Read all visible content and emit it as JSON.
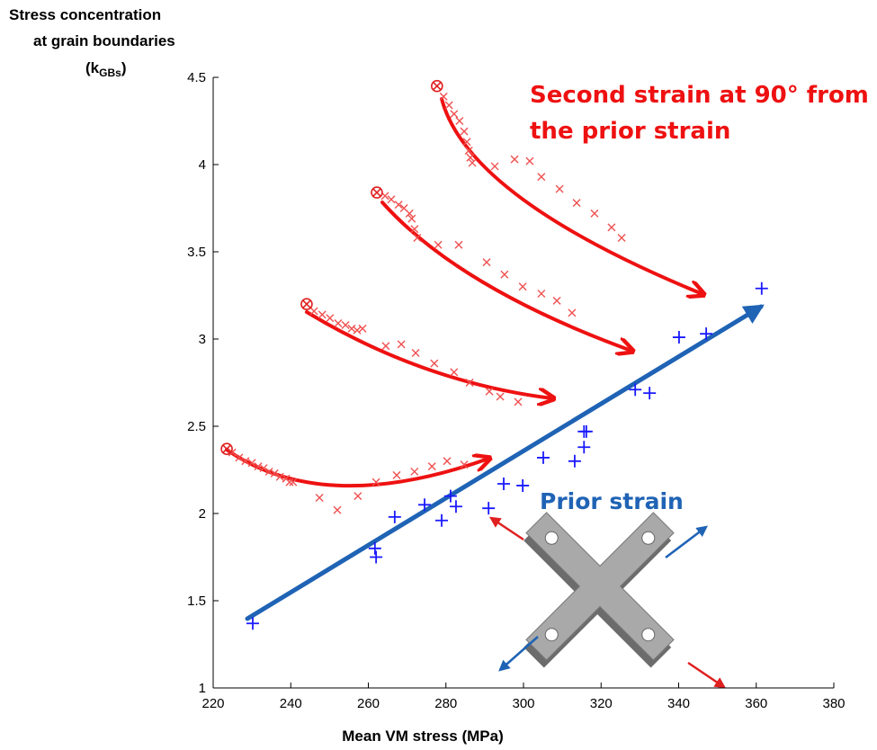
{
  "chart_data": {
    "type": "scatter",
    "xlabel": "Mean VM stress (MPa)",
    "ylabel": [
      "Stress concentration",
      "at grain boundaries"
    ],
    "ylabel_symbol": {
      "text": "(k",
      "sub": "GBs",
      "end": ")"
    },
    "annotations": [
      "Second strain at 90° from",
      "the prior strain",
      "Prior strain"
    ],
    "xlim": [
      220,
      380
    ],
    "xticks": [
      220,
      240,
      260,
      280,
      300,
      320,
      340,
      360,
      380
    ],
    "ylim": [
      1,
      4.5
    ],
    "yticks": [
      1,
      1.5,
      2,
      2.5,
      3,
      3.5,
      4,
      4.5
    ],
    "grid": false,
    "series": [
      {
        "color": "#1a1aff",
        "marker": "plus",
        "x": [
          230.2,
          261.7,
          262.0,
          266.8,
          274.5,
          278.9,
          281.2,
          282.6,
          291.0,
          294.9,
          299.8,
          305.1,
          313.2,
          315.6,
          315.6,
          316.2,
          328.8,
          332.5,
          340.1,
          347.1,
          361.4
        ],
        "values": [
          1.37,
          1.8,
          1.75,
          1.98,
          2.05,
          1.96,
          2.1,
          2.04,
          2.03,
          2.17,
          2.16,
          2.32,
          2.3,
          2.47,
          2.38,
          2.47,
          2.71,
          2.69,
          3.01,
          3.03,
          3.29
        ]
      },
      {
        "color": "#f05050",
        "marker": "x",
        "x": [
          224.9,
          226.7,
          228.3,
          230.0,
          231.6,
          233.0,
          234.4,
          235.8,
          237.2,
          238.8,
          239.7,
          240.6,
          247.4,
          252.0,
          257.3,
          262.0,
          267.3,
          271.9,
          276.4,
          280.3,
          284.7,
          246.0,
          248.1,
          250.1,
          252.2,
          254.1,
          255.7,
          257.1,
          258.5,
          264.5,
          268.5,
          272.2,
          277.0,
          282.1,
          286.1,
          291.2,
          294.0,
          298.6,
          264.3,
          265.9,
          267.8,
          269.2,
          270.6,
          271.2,
          271.9,
          272.6,
          278.0,
          283.3,
          290.5,
          295.1,
          299.8,
          304.6,
          308.6,
          312.5,
          279.4,
          280.8,
          282.1,
          283.5,
          284.7,
          285.4,
          285.9,
          286.3,
          286.8,
          292.6,
          297.7,
          301.6,
          304.6,
          309.3,
          313.7,
          318.3,
          322.7,
          325.3
        ],
        "values": [
          2.35,
          2.32,
          2.3,
          2.29,
          2.27,
          2.26,
          2.24,
          2.23,
          2.21,
          2.2,
          2.18,
          2.18,
          2.09,
          2.02,
          2.1,
          2.18,
          2.22,
          2.24,
          2.27,
          2.3,
          2.28,
          3.16,
          3.14,
          3.12,
          3.09,
          3.08,
          3.06,
          3.05,
          3.06,
          2.96,
          2.97,
          2.92,
          2.86,
          2.81,
          2.75,
          2.7,
          2.67,
          2.64,
          3.82,
          3.8,
          3.77,
          3.75,
          3.72,
          3.69,
          3.63,
          3.58,
          3.54,
          3.54,
          3.44,
          3.37,
          3.3,
          3.26,
          3.22,
          3.15,
          4.39,
          4.34,
          4.29,
          4.25,
          4.19,
          4.13,
          4.08,
          4.04,
          4.01,
          3.99,
          4.03,
          4.02,
          3.93,
          3.86,
          3.78,
          3.72,
          3.64,
          3.58
        ]
      },
      {
        "color": "#e02020",
        "marker": "circle-x",
        "x": [
          223.5,
          244.1,
          262.2,
          277.7
        ],
        "values": [
          2.37,
          3.2,
          3.84,
          4.45
        ]
      }
    ]
  }
}
